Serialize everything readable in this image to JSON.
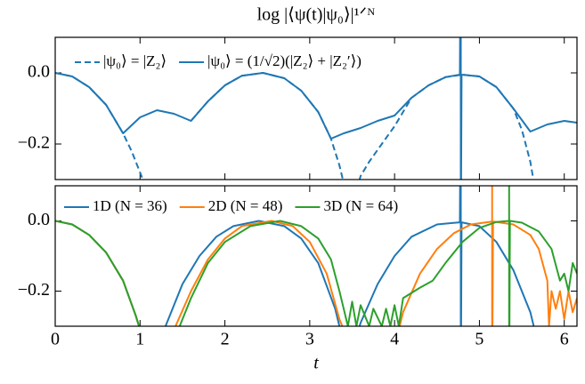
{
  "chart_data": [
    {
      "type": "line",
      "title": "log |⟨ψ(t)|ψ₀⟩|¹ᐟᴺ",
      "xlim": [
        0,
        6.15
      ],
      "ylim": [
        -0.3,
        0.1
      ],
      "xticks": [
        0,
        1,
        2,
        3,
        4,
        5,
        6
      ],
      "yticks": [
        {
          "value": 0,
          "label": "0.0"
        },
        {
          "value": -0.2,
          "label": "−0.2"
        }
      ],
      "legend": "upper left",
      "series": [
        {
          "name": "|ψ₀⟩ = |Z₂⟩",
          "color": "#1f77b4",
          "dash": true,
          "x": [
            0,
            0.2,
            0.4,
            0.6,
            0.8,
            0.9,
            1.0,
            1.05,
            1.3,
            1.6,
            1.8,
            2.0,
            2.2,
            2.45,
            2.7,
            2.9,
            3.1,
            3.25,
            3.35,
            3.4,
            3.5,
            3.55,
            3.6,
            3.7,
            3.85,
            4.0,
            4.2,
            4.4,
            4.6,
            4.8,
            5.0,
            5.2,
            5.4,
            5.5,
            5.6,
            5.65
          ],
          "values": [
            0,
            -0.01,
            -0.04,
            -0.09,
            -0.17,
            -0.22,
            -0.28,
            -0.31,
            null,
            -0.135,
            -0.08,
            -0.035,
            -0.008,
            0,
            -0.015,
            -0.05,
            -0.11,
            -0.185,
            -0.26,
            -0.31,
            null,
            -0.33,
            -0.29,
            -0.25,
            -0.2,
            -0.15,
            -0.07,
            -0.035,
            -0.012,
            -0.005,
            -0.01,
            -0.04,
            -0.1,
            -0.16,
            -0.25,
            -0.32
          ]
        },
        {
          "name": "|ψ₀⟩ = (1/√2)(|Z₂⟩ + |Z₂′⟩)",
          "color": "#1f77b4",
          "dash": false,
          "x": [
            0,
            0.2,
            0.4,
            0.6,
            0.8,
            1.0,
            1.2,
            1.4,
            1.6,
            1.8,
            2.0,
            2.2,
            2.45,
            2.7,
            2.9,
            3.1,
            3.25,
            3.4,
            3.6,
            3.8,
            4.0,
            4.2,
            4.4,
            4.6,
            4.77,
            4.78,
            4.78,
            4.79,
            5.0,
            5.2,
            5.4,
            5.6,
            5.8,
            6.0,
            6.15
          ],
          "values": [
            0,
            -0.01,
            -0.04,
            -0.09,
            -0.17,
            -0.125,
            -0.105,
            -0.115,
            -0.135,
            -0.08,
            -0.035,
            -0.008,
            0,
            -0.015,
            -0.05,
            -0.11,
            -0.185,
            -0.17,
            -0.155,
            -0.135,
            -0.12,
            -0.07,
            -0.035,
            -0.012,
            -0.005,
            0.5,
            -0.5,
            -0.005,
            -0.01,
            -0.04,
            -0.1,
            -0.165,
            -0.145,
            -0.135,
            -0.14
          ]
        }
      ]
    },
    {
      "type": "line",
      "xlabel": "t",
      "xlim": [
        0,
        6.15
      ],
      "ylim": [
        -0.3,
        0.1
      ],
      "xticks": [
        0,
        1,
        2,
        3,
        4,
        5,
        6
      ],
      "yticks": [
        {
          "value": 0,
          "label": "0.0"
        },
        {
          "value": -0.2,
          "label": "−0.2"
        }
      ],
      "legend": "upper left",
      "series": [
        {
          "name": "1D (N = 36)",
          "color": "#1f77b4",
          "dash": false,
          "x": [
            0,
            0.2,
            0.4,
            0.6,
            0.8,
            0.95,
            1.0,
            1.15,
            1.25,
            1.3,
            1.5,
            1.7,
            1.9,
            2.1,
            2.4,
            2.7,
            2.9,
            3.1,
            3.3,
            3.35,
            3.4,
            3.5,
            3.55,
            3.6,
            3.8,
            4.0,
            4.2,
            4.5,
            4.77,
            4.78,
            4.78,
            4.79,
            5.0,
            5.2,
            5.4,
            5.6,
            5.65
          ],
          "values": [
            0,
            -0.01,
            -0.04,
            -0.09,
            -0.17,
            -0.27,
            -0.31,
            null,
            -0.32,
            -0.3,
            -0.18,
            -0.1,
            -0.045,
            -0.015,
            0,
            -0.015,
            -0.05,
            -0.12,
            -0.25,
            -0.3,
            -0.34,
            null,
            -0.33,
            -0.29,
            -0.18,
            -0.1,
            -0.045,
            -0.01,
            -0.004,
            0.5,
            -0.5,
            -0.004,
            -0.015,
            -0.06,
            -0.14,
            -0.26,
            -0.31
          ]
        },
        {
          "name": "2D (N = 48)",
          "color": "#ff7f0e",
          "dash": false,
          "x": [
            0,
            0.2,
            0.4,
            0.6,
            0.8,
            0.95,
            1.0,
            1.2,
            1.4,
            1.6,
            1.8,
            2.0,
            2.2,
            2.55,
            2.8,
            3.0,
            3.2,
            3.35,
            3.4,
            3.7,
            4.05,
            4.1,
            4.3,
            4.5,
            4.7,
            4.9,
            5.15,
            5.15,
            5.15,
            5.16,
            5.4,
            5.6,
            5.7,
            5.8,
            5.82,
            5.85,
            5.9,
            5.95,
            6.0,
            6.05,
            6.1,
            6.15
          ],
          "values": [
            0,
            -0.01,
            -0.04,
            -0.09,
            -0.17,
            -0.27,
            -0.31,
            null,
            -0.31,
            -0.2,
            -0.11,
            -0.05,
            -0.015,
            0,
            -0.015,
            -0.06,
            -0.15,
            -0.28,
            -0.31,
            null,
            -0.31,
            -0.26,
            -0.15,
            -0.08,
            -0.035,
            -0.01,
            -0.002,
            0.5,
            -0.5,
            -0.002,
            -0.01,
            -0.04,
            -0.08,
            -0.17,
            -0.3,
            -0.2,
            -0.25,
            -0.2,
            -0.28,
            -0.2,
            -0.26,
            -0.22
          ]
        },
        {
          "name": "3D (N = 64)",
          "color": "#2ca02c",
          "dash": false,
          "x": [
            0,
            0.2,
            0.4,
            0.6,
            0.8,
            0.95,
            1.0,
            1.2,
            1.45,
            1.6,
            1.8,
            2.0,
            2.3,
            2.65,
            2.9,
            3.1,
            3.25,
            3.35,
            3.4,
            3.45,
            3.5,
            3.55,
            3.6,
            3.7,
            3.75,
            3.85,
            3.9,
            3.95,
            4.0,
            4.05,
            4.1,
            4.3,
            4.45,
            4.6,
            4.8,
            5.0,
            5.2,
            5.35,
            5.35,
            5.35,
            5.36,
            5.5,
            5.7,
            5.85,
            5.95,
            6.0,
            6.05,
            6.1,
            6.15
          ],
          "values": [
            0,
            -0.01,
            -0.04,
            -0.09,
            -0.17,
            -0.27,
            -0.31,
            null,
            -0.31,
            -0.22,
            -0.12,
            -0.06,
            -0.015,
            0,
            -0.015,
            -0.05,
            -0.11,
            -0.2,
            -0.25,
            -0.3,
            -0.23,
            -0.3,
            -0.24,
            -0.3,
            -0.25,
            -0.3,
            -0.25,
            -0.3,
            -0.24,
            -0.3,
            -0.22,
            -0.19,
            -0.17,
            -0.12,
            -0.06,
            -0.02,
            -0.003,
            0,
            0.5,
            -0.5,
            0,
            -0.005,
            -0.03,
            -0.08,
            -0.17,
            -0.15,
            -0.2,
            -0.12,
            -0.15
          ]
        }
      ]
    }
  ]
}
